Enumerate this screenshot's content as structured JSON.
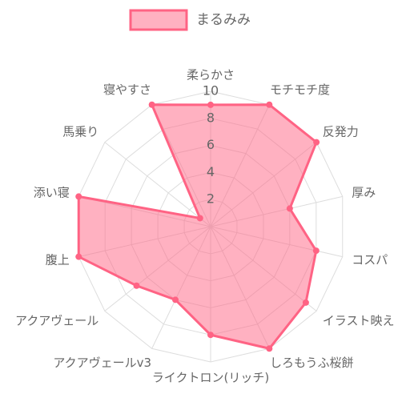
{
  "chart_data": {
    "type": "radar",
    "categories": [
      "柔らかさ",
      "モチモチ度",
      "反発力",
      "厚み",
      "コスパ",
      "イラスト映え",
      "しろもうふ桜餅",
      "ライクトロン(リッチ)",
      "アクアヴェールv3",
      "アクアヴェール",
      "腹上",
      "添い寝",
      "馬乗り",
      "寝やすさ"
    ],
    "series": [
      {
        "name": "まるみみ",
        "color": "#ff6384",
        "values": [
          9,
          10,
          10,
          6,
          8,
          9,
          10,
          8,
          6,
          7,
          10,
          10,
          1,
          10
        ]
      }
    ],
    "ylim": [
      0,
      10
    ],
    "yticks": [
      2,
      4,
      6,
      8,
      10
    ],
    "grid": true,
    "legend": "top"
  }
}
